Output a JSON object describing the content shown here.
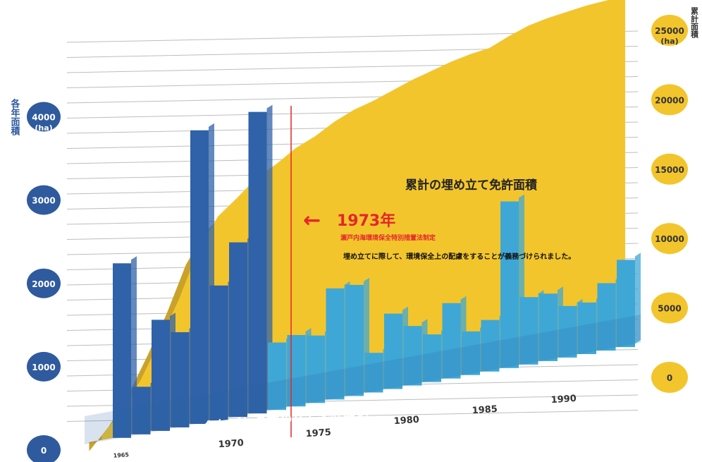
{
  "chart_data": {
    "type": "bar",
    "left_axis": {
      "ylabel": "各年面積",
      "unit": "(ha)",
      "ticks": [
        0,
        1000,
        2000,
        3000,
        4000
      ],
      "ylim": [
        0,
        4000
      ]
    },
    "right_axis": {
      "ylabel": "累計面積",
      "unit": "(ha)",
      "ticks": [
        0,
        5000,
        10000,
        15000,
        20000,
        25000
      ],
      "ylim": [
        0,
        25000
      ]
    },
    "x_ticks": [
      "1965",
      "1970",
      "1975",
      "1980",
      "1985",
      "1990"
    ],
    "series": [
      {
        "name": "各年ごとの埋め立て免許面積",
        "years": [
          1966,
          1967,
          1968,
          1969,
          1970,
          1971,
          1972,
          1973,
          1974,
          1975,
          1976,
          1977,
          1978,
          1979,
          1980,
          1981,
          1982,
          1983,
          1984,
          1985,
          1986,
          1987,
          1988,
          1989,
          1990,
          1991,
          1992
        ],
        "values": [
          2200,
          600,
          1400,
          1200,
          3700,
          1700,
          2200,
          3800,
          850,
          900,
          850,
          1400,
          1400,
          500,
          950,
          750,
          600,
          950,
          550,
          650,
          2100,
          850,
          850,
          650,
          650,
          850,
          1100
        ]
      },
      {
        "name": "累計の埋め立て免許面積",
        "years": [
          1965,
          1966,
          1967,
          1968,
          1969,
          1970,
          1971,
          1972,
          1973,
          1974,
          1975,
          1976,
          1977,
          1978,
          1979,
          1980,
          1981,
          1982,
          1983,
          1984,
          1985,
          1986,
          1987,
          1988,
          1989,
          1990,
          1991,
          1992
        ],
        "values": [
          300,
          1800,
          3800,
          6400,
          9200,
          12500,
          14600,
          15700,
          16900,
          17600,
          18500,
          19100,
          19900,
          20500,
          20900,
          21400,
          21900,
          22300,
          22700,
          23000,
          23200,
          23800,
          24300,
          24600,
          24800,
          25000,
          25100,
          25200
        ]
      }
    ],
    "annotations": {
      "cumulative_label": "累計の埋め立て免許面積",
      "annual_label": "各年ごとの埋め立て免許面積",
      "event_year": "1973年",
      "event_red": "瀬戸内海環境保全特別措置法制定",
      "event_black": "埋め立てに際して、環境保全上の配慮をすることが義務づけられました。"
    },
    "colors": {
      "annual_bar": "#2f62a8",
      "annual_bar_late": "#3fa7d6",
      "cumulative_area": "#f3c52c",
      "cumulative_area_dark": "#c9a22a",
      "left_badge": "#2f5a9e",
      "right_badge": "#f3c52c",
      "event_red": "#e4262b",
      "grid": "#bdbdbd"
    }
  }
}
